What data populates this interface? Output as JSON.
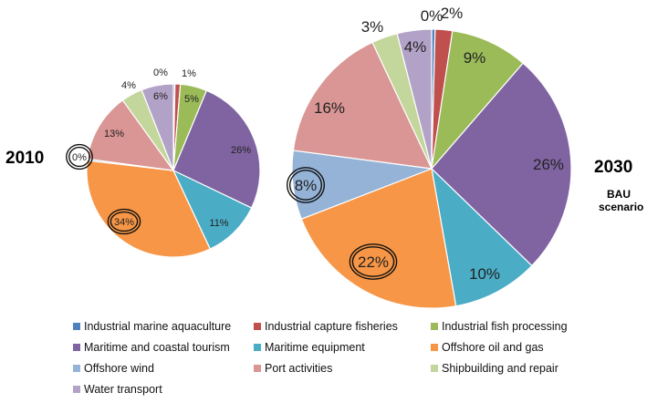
{
  "colors": {
    "Industrial marine aquaculture": "#4f81bd",
    "Industrial capture fisheries": "#c0504d",
    "Industrial fish processing": "#9bbb59",
    "Maritime and coastal tourism": "#8064a2",
    "Maritime equipment": "#4bacc6",
    "Offshore oil and gas": "#f79646",
    "Offshore wind": "#95b3d7",
    "Port activities": "#d99694",
    "Shipbuilding and repair": "#c3d69b",
    "Water transport": "#b3a2c7"
  },
  "labels": {
    "left_year": "2010",
    "right_year": "2030",
    "right_scenario_line1": "BAU",
    "right_scenario_line2": "scenario"
  },
  "chart_data": [
    {
      "type": "pie",
      "title": "2010",
      "categories": [
        "Industrial marine aquaculture",
        "Industrial capture fisheries",
        "Industrial fish processing",
        "Maritime and coastal tourism",
        "Maritime equipment",
        "Offshore oil and gas",
        "Offshore wind",
        "Port activities",
        "Shipbuilding and repair",
        "Water transport"
      ],
      "values": [
        0.3,
        1,
        5,
        26,
        11,
        34,
        0.3,
        13,
        4,
        6
      ],
      "labels": [
        "0%",
        "1%",
        "5%",
        "26%",
        "11%",
        "34%",
        "0%",
        "13%",
        "4%",
        "6%"
      ],
      "highlighted": [
        "Offshore oil and gas",
        "Offshore wind"
      ]
    },
    {
      "type": "pie",
      "title": "2030",
      "subtitle": "BAU scenario",
      "categories": [
        "Industrial marine aquaculture",
        "Industrial capture fisheries",
        "Industrial fish processing",
        "Maritime and coastal tourism",
        "Maritime equipment",
        "Offshore oil and gas",
        "Offshore wind",
        "Port activities",
        "Shipbuilding and repair",
        "Water transport"
      ],
      "values": [
        0.4,
        2,
        9,
        26,
        10,
        22,
        8,
        16,
        3,
        4
      ],
      "labels": [
        "0%",
        "2%",
        "9%",
        "26%",
        "10%",
        "22%",
        "8%",
        "16%",
        "3%",
        "4%"
      ],
      "highlighted": [
        "Offshore oil and gas",
        "Offshore wind"
      ]
    }
  ],
  "legend": [
    "Industrial marine aquaculture",
    "Industrial capture fisheries",
    "Industrial fish processing",
    "Maritime and coastal tourism",
    "Maritime equipment",
    "Offshore oil and gas",
    "Offshore wind",
    "Port activities",
    "Shipbuilding and repair",
    "Water transport"
  ],
  "legend_position": "bottom"
}
